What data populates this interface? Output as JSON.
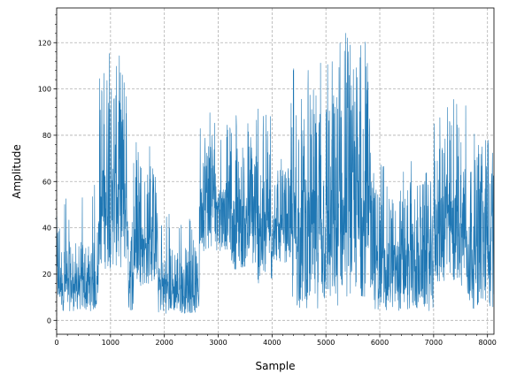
{
  "chart_data": {
    "type": "line",
    "title": "",
    "xlabel": "Sample",
    "ylabel": "Amplitude",
    "xlim": [
      0,
      8120
    ],
    "ylim": [
      -6,
      135
    ],
    "x_ticks": [
      0,
      1000,
      2000,
      3000,
      4000,
      5000,
      6000,
      7000,
      8000
    ],
    "y_ticks": [
      0,
      20,
      40,
      60,
      80,
      100,
      120
    ],
    "grid": true,
    "legend": "none",
    "series": [
      {
        "color": "#1f77b4",
        "n_samples": 8120,
        "segments": [
          {
            "x": [
              0,
              80
            ],
            "low": 3,
            "high": 45,
            "peak": 62
          },
          {
            "x": [
              80,
              780
            ],
            "low": 4,
            "high": 34,
            "peak": 63
          },
          {
            "x": [
              780,
              1320
            ],
            "low": 22,
            "high": 110,
            "peak": 124
          },
          {
            "x": [
              1320,
              1430
            ],
            "low": 4,
            "high": 40,
            "peak": 45
          },
          {
            "x": [
              1430,
              1880
            ],
            "low": 15,
            "high": 65,
            "peak": 78
          },
          {
            "x": [
              1880,
              2650
            ],
            "low": 3,
            "high": 32,
            "peak": 47
          },
          {
            "x": [
              2650,
              3250
            ],
            "low": 30,
            "high": 85,
            "peak": 100
          },
          {
            "x": [
              3250,
              3700
            ],
            "low": 22,
            "high": 78,
            "peak": 90
          },
          {
            "x": [
              3700,
              4000
            ],
            "low": 15,
            "high": 80,
            "peak": 93
          },
          {
            "x": [
              4000,
              4350
            ],
            "low": 25,
            "high": 65,
            "peak": 75
          },
          {
            "x": [
              4350,
              4700
            ],
            "low": 5,
            "high": 100,
            "peak": 111
          },
          {
            "x": [
              4700,
              5250
            ],
            "low": 5,
            "high": 100,
            "peak": 113
          },
          {
            "x": [
              5250,
              5900
            ],
            "low": 10,
            "high": 112,
            "peak": 128
          },
          {
            "x": [
              5900,
              6500
            ],
            "low": 4,
            "high": 58,
            "peak": 68
          },
          {
            "x": [
              6500,
              7000
            ],
            "low": 4,
            "high": 60,
            "peak": 73
          },
          {
            "x": [
              7000,
              7600
            ],
            "low": 15,
            "high": 88,
            "peak": 101
          },
          {
            "x": [
              7600,
              8120
            ],
            "low": 5,
            "high": 70,
            "peak": 82
          }
        ]
      }
    ]
  }
}
